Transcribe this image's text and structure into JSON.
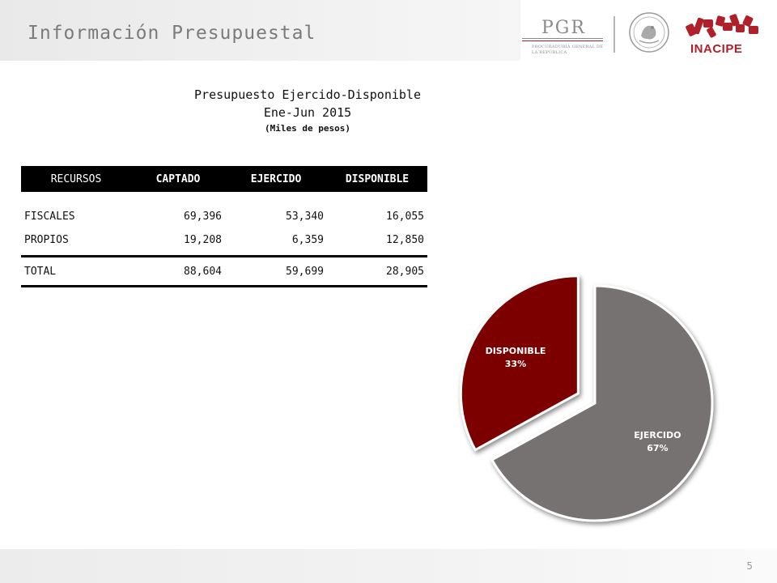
{
  "header": {
    "title": "Información Presupuestal",
    "logos": {
      "pgr_text": "PGR",
      "pgr_subtitle": "PROCURADURÍA GENERAL DE LA REPÚBLICA",
      "inacipe_text": "INACIPE"
    }
  },
  "report": {
    "title_line1": "Presupuesto Ejercido-Disponible",
    "title_line2": "Ene-Jun 2015",
    "title_line3": "(Miles de pesos)"
  },
  "table": {
    "headers": [
      "RECURSOS",
      "CAPTADO",
      "EJERCIDO",
      "DISPONIBLE"
    ],
    "rows": [
      {
        "label": "FISCALES",
        "captado": "69,396",
        "ejercido": "53,340",
        "disponible": "16,055"
      },
      {
        "label": "PROPIOS",
        "captado": "19,208",
        "ejercido": "6,359",
        "disponible": "12,850"
      }
    ],
    "total": {
      "label": "TOTAL",
      "captado": "88,604",
      "ejercido": "59,699",
      "disponible": "28,905"
    }
  },
  "chart_data": {
    "type": "pie",
    "title": "",
    "slices": [
      {
        "label": "EJERCIDO",
        "value": 67,
        "display": "67%",
        "color": "#777272"
      },
      {
        "label": "DISPONIBLE",
        "value": 33,
        "display": "33%",
        "color": "#7b0000"
      }
    ],
    "exploded": "DISPONIBLE"
  },
  "footer": {
    "page_number": "5"
  }
}
